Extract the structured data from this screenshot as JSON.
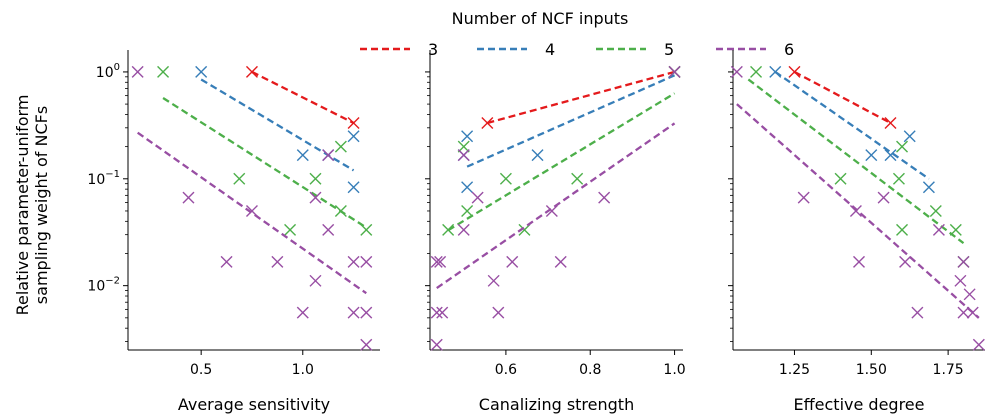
{
  "chart_data": {
    "type": "scatter",
    "y_scale": "log",
    "ylim": [
      0.0025,
      1.35
    ],
    "ylabel_lines": [
      "Relative parameter-uniform",
      "sampling weight of NCFs"
    ],
    "y_ticks": [
      {
        "value": 1,
        "base": "10",
        "exp": "0"
      },
      {
        "value": 0.1,
        "base": "10",
        "exp": "−1"
      },
      {
        "value": 0.01,
        "base": "10",
        "exp": "−2"
      }
    ],
    "legend": {
      "title": "Number of NCF inputs",
      "placement": "top-center",
      "entries": [
        {
          "label": "3",
          "color": "#e41a1c"
        },
        {
          "label": "4",
          "color": "#377eb8"
        },
        {
          "label": "5",
          "color": "#4daf4a"
        },
        {
          "label": "6",
          "color": "#984ea3"
        }
      ]
    },
    "panels": [
      {
        "xlabel": "Average sensitivity",
        "xlim": [
          0.14,
          1.38
        ],
        "xticks": [
          0.5,
          1.0
        ],
        "xtick_labels": [
          "0.5",
          "1.0"
        ],
        "series": [
          {
            "color": "#e41a1c",
            "points": [
              [
                0.75,
                1.0
              ],
              [
                1.25,
                0.333
              ]
            ],
            "fit": [
              [
                0.75,
                1.0
              ],
              [
                1.25,
                0.333
              ]
            ]
          },
          {
            "color": "#377eb8",
            "points": [
              [
                0.5,
                1.0
              ],
              [
                1.0,
                0.1667
              ],
              [
                1.25,
                0.25
              ],
              [
                1.125,
                0.1667
              ],
              [
                1.25,
                0.0833
              ]
            ],
            "fit": [
              [
                0.5,
                0.85
              ],
              [
                1.25,
                0.12
              ]
            ]
          },
          {
            "color": "#4daf4a",
            "points": [
              [
                0.3125,
                1.0
              ],
              [
                0.6875,
                0.1
              ],
              [
                1.0625,
                0.1
              ],
              [
                1.1875,
                0.2
              ],
              [
                1.1875,
                0.05
              ],
              [
                0.9375,
                0.0333
              ],
              [
                1.3125,
                0.0333
              ]
            ],
            "fit": [
              [
                0.3125,
                0.57
              ],
              [
                1.3125,
                0.035
              ]
            ]
          },
          {
            "color": "#984ea3",
            "points": [
              [
                0.1875,
                1.0
              ],
              [
                0.4375,
                0.0667
              ],
              [
                0.625,
                0.0167
              ],
              [
                0.75,
                0.05
              ],
              [
                0.875,
                0.0167
              ],
              [
                1.0,
                0.0056
              ],
              [
                1.0625,
                0.0667
              ],
              [
                1.0625,
                0.0111
              ],
              [
                1.125,
                0.1667
              ],
              [
                1.125,
                0.0333
              ],
              [
                1.25,
                0.0167
              ],
              [
                1.25,
                0.0056
              ],
              [
                1.3125,
                0.0167
              ],
              [
                1.3125,
                0.0056
              ],
              [
                1.3125,
                0.0028
              ]
            ],
            "fit": [
              [
                0.1875,
                0.27
              ],
              [
                1.3125,
                0.0085
              ]
            ]
          }
        ]
      },
      {
        "xlabel": "Canalizing strength",
        "xlim": [
          0.42,
          1.02
        ],
        "xticks": [
          0.6,
          0.8,
          1.0
        ],
        "xtick_labels": [
          "0.6",
          "0.8",
          "1.0"
        ],
        "series": [
          {
            "color": "#e41a1c",
            "points": [
              [
                0.556,
                0.333
              ],
              [
                1.0,
                1.0
              ]
            ],
            "fit": [
              [
                0.556,
                0.333
              ],
              [
                1.0,
                1.0
              ]
            ]
          },
          {
            "color": "#377eb8",
            "points": [
              [
                0.5,
                0.1667
              ],
              [
                0.508,
                0.25
              ],
              [
                0.508,
                0.0833
              ],
              [
                0.675,
                0.1667
              ],
              [
                1.0,
                1.0
              ]
            ],
            "fit": [
              [
                0.508,
                0.13
              ],
              [
                1.0,
                0.93
              ]
            ]
          },
          {
            "color": "#4daf4a",
            "points": [
              [
                0.463,
                0.0333
              ],
              [
                0.5,
                0.2
              ],
              [
                0.508,
                0.05
              ],
              [
                0.6,
                0.1
              ],
              [
                0.644,
                0.0333
              ],
              [
                0.769,
                0.1
              ],
              [
                1.0,
                1.0
              ]
            ],
            "fit": [
              [
                0.463,
                0.033
              ],
              [
                1.0,
                0.63
              ]
            ]
          },
          {
            "color": "#984ea3",
            "points": [
              [
                0.436,
                0.0167
              ],
              [
                0.436,
                0.0056
              ],
              [
                0.436,
                0.0028
              ],
              [
                0.444,
                0.0167
              ],
              [
                0.449,
                0.0056
              ],
              [
                0.5,
                0.1667
              ],
              [
                0.5,
                0.0333
              ],
              [
                0.533,
                0.0667
              ],
              [
                0.571,
                0.0111
              ],
              [
                0.582,
                0.0056
              ],
              [
                0.615,
                0.0167
              ],
              [
                0.709,
                0.05
              ],
              [
                0.73,
                0.0167
              ],
              [
                0.833,
                0.0667
              ],
              [
                1.0,
                1.0
              ]
            ],
            "fit": [
              [
                0.436,
                0.0095
              ],
              [
                1.0,
                0.33
              ]
            ]
          }
        ]
      },
      {
        "xlabel": "Effective degree",
        "xlim": [
          1.05,
          1.87
        ],
        "xticks": [
          1.25,
          1.5,
          1.75
        ],
        "xtick_labels": [
          "1.25",
          "1.50",
          "1.75"
        ],
        "series": [
          {
            "color": "#e41a1c",
            "points": [
              [
                1.25,
                1.0
              ],
              [
                1.5625,
                0.333
              ]
            ],
            "fit": [
              [
                1.25,
                1.0
              ],
              [
                1.5625,
                0.333
              ]
            ]
          },
          {
            "color": "#377eb8",
            "points": [
              [
                1.1875,
                1.0
              ],
              [
                1.5,
                0.1667
              ],
              [
                1.625,
                0.25
              ],
              [
                1.5625,
                0.1667
              ],
              [
                1.6875,
                0.0833
              ]
            ],
            "fit": [
              [
                1.1875,
                1.0
              ],
              [
                1.6875,
                0.1
              ]
            ]
          },
          {
            "color": "#4daf4a",
            "points": [
              [
                1.125,
                1.0
              ],
              [
                1.4,
                0.1
              ],
              [
                1.6,
                0.2
              ],
              [
                1.59,
                0.1
              ],
              [
                1.6,
                0.0333
              ],
              [
                1.71,
                0.05
              ],
              [
                1.775,
                0.0333
              ],
              [
                1.8,
                0.0167
              ]
            ],
            "fit": [
              [
                1.1,
                0.85
              ],
              [
                1.8,
                0.025
              ]
            ]
          },
          {
            "color": "#984ea3",
            "points": [
              [
                1.0625,
                1.0
              ],
              [
                1.28,
                0.0667
              ],
              [
                1.45,
                0.05
              ],
              [
                1.46,
                0.0167
              ],
              [
                1.54,
                0.0667
              ],
              [
                1.61,
                0.0167
              ],
              [
                1.65,
                0.0056
              ],
              [
                1.72,
                0.0333
              ],
              [
                1.79,
                0.0111
              ],
              [
                1.8,
                0.0167
              ],
              [
                1.8,
                0.0056
              ],
              [
                1.82,
                0.0083
              ],
              [
                1.83,
                0.0056
              ],
              [
                1.85,
                0.0028
              ]
            ],
            "fit": [
              [
                1.0625,
                0.5
              ],
              [
                1.85,
                0.005
              ]
            ]
          }
        ]
      }
    ]
  }
}
